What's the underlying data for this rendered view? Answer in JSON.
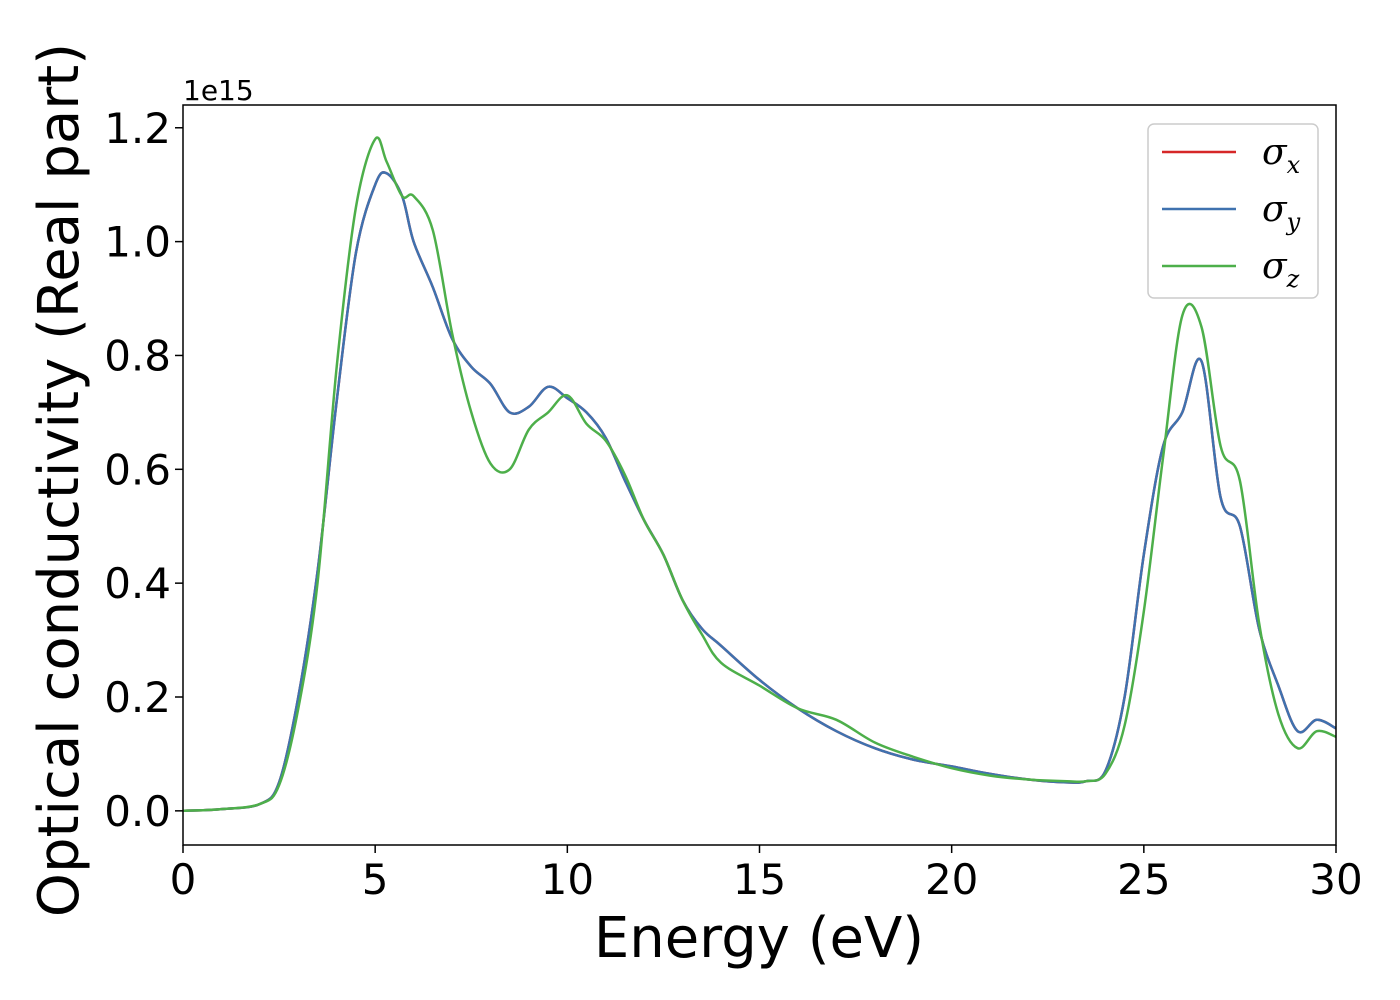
{
  "chart_data": {
    "type": "line",
    "title": "",
    "xlabel": "Energy (eV)",
    "ylabel": "Optical conductivity (Real part)",
    "y_offset_label": "1e15",
    "y_scale_factor": 1000000000000000.0,
    "xlim": [
      0,
      30
    ],
    "ylim": [
      -0.06,
      1.24
    ],
    "x_ticks": [
      0,
      5,
      10,
      15,
      20,
      25,
      30
    ],
    "x_tick_labels": [
      "0",
      "5",
      "10",
      "15",
      "20",
      "25",
      "30"
    ],
    "y_ticks": [
      0.0,
      0.2,
      0.4,
      0.6,
      0.8,
      1.0,
      1.2
    ],
    "y_tick_labels": [
      "0.0",
      "0.2",
      "0.4",
      "0.6",
      "0.8",
      "1.0",
      "1.2"
    ],
    "grid": false,
    "legend_position": "top-right",
    "series": [
      {
        "name": "σx",
        "symbol": "σ",
        "subscript": "x",
        "color": "#d62728",
        "x": [
          0,
          1,
          2,
          2.5,
          3,
          3.5,
          4,
          4.5,
          5,
          5.3,
          5.7,
          6,
          6.5,
          7,
          7.5,
          8,
          8.5,
          9,
          9.5,
          10,
          10.5,
          11,
          11.5,
          12,
          12.5,
          13,
          13.5,
          14,
          15,
          16,
          17,
          18,
          19,
          20,
          21,
          22,
          23,
          23.5,
          24,
          24.5,
          25,
          25.5,
          26,
          26.5,
          27,
          27.5,
          28,
          28.5,
          29,
          29.5,
          30
        ],
        "y": [
          0.0,
          0.003,
          0.012,
          0.05,
          0.2,
          0.42,
          0.72,
          0.98,
          1.1,
          1.12,
          1.08,
          1.0,
          0.92,
          0.83,
          0.78,
          0.75,
          0.7,
          0.71,
          0.745,
          0.725,
          0.7,
          0.655,
          0.58,
          0.51,
          0.45,
          0.37,
          0.32,
          0.29,
          0.23,
          0.18,
          0.14,
          0.11,
          0.09,
          0.078,
          0.065,
          0.055,
          0.05,
          0.052,
          0.07,
          0.2,
          0.45,
          0.64,
          0.7,
          0.79,
          0.55,
          0.5,
          0.32,
          0.22,
          0.14,
          0.16,
          0.145
        ]
      },
      {
        "name": "σy",
        "symbol": "σ",
        "subscript": "y",
        "color": "#3f72af",
        "x": [
          0,
          1,
          2,
          2.5,
          3,
          3.5,
          4,
          4.5,
          5,
          5.3,
          5.7,
          6,
          6.5,
          7,
          7.5,
          8,
          8.5,
          9,
          9.5,
          10,
          10.5,
          11,
          11.5,
          12,
          12.5,
          13,
          13.5,
          14,
          15,
          16,
          17,
          18,
          19,
          20,
          21,
          22,
          23,
          23.5,
          24,
          24.5,
          25,
          25.5,
          26,
          26.5,
          27,
          27.5,
          28,
          28.5,
          29,
          29.5,
          30
        ],
        "y": [
          0.0,
          0.003,
          0.012,
          0.05,
          0.2,
          0.42,
          0.72,
          0.98,
          1.1,
          1.12,
          1.08,
          1.0,
          0.92,
          0.83,
          0.78,
          0.75,
          0.7,
          0.71,
          0.745,
          0.725,
          0.7,
          0.655,
          0.58,
          0.51,
          0.45,
          0.37,
          0.32,
          0.29,
          0.23,
          0.18,
          0.14,
          0.11,
          0.09,
          0.078,
          0.065,
          0.055,
          0.05,
          0.052,
          0.07,
          0.2,
          0.45,
          0.64,
          0.7,
          0.79,
          0.55,
          0.5,
          0.32,
          0.22,
          0.14,
          0.16,
          0.145
        ]
      },
      {
        "name": "σz",
        "symbol": "σ",
        "subscript": "z",
        "color": "#4daf4a",
        "x": [
          0,
          1,
          2,
          2.5,
          3,
          3.5,
          4,
          4.5,
          5,
          5.3,
          5.7,
          6,
          6.5,
          7,
          7.5,
          8,
          8.5,
          9,
          9.5,
          10,
          10.5,
          11,
          11.5,
          12,
          12.5,
          13,
          13.5,
          14,
          15,
          16,
          17,
          18,
          19,
          20,
          21,
          22,
          23,
          23.5,
          24,
          24.5,
          25,
          25.5,
          26,
          26.5,
          27,
          27.5,
          28,
          28.5,
          29,
          29.5,
          30
        ],
        "y": [
          0.0,
          0.003,
          0.012,
          0.045,
          0.18,
          0.4,
          0.78,
          1.06,
          1.18,
          1.14,
          1.08,
          1.08,
          1.02,
          0.84,
          0.7,
          0.61,
          0.6,
          0.67,
          0.7,
          0.73,
          0.68,
          0.65,
          0.59,
          0.51,
          0.45,
          0.37,
          0.31,
          0.26,
          0.22,
          0.18,
          0.16,
          0.12,
          0.095,
          0.075,
          0.062,
          0.055,
          0.052,
          0.052,
          0.065,
          0.15,
          0.35,
          0.62,
          0.87,
          0.85,
          0.64,
          0.58,
          0.33,
          0.17,
          0.11,
          0.14,
          0.13
        ]
      }
    ]
  }
}
